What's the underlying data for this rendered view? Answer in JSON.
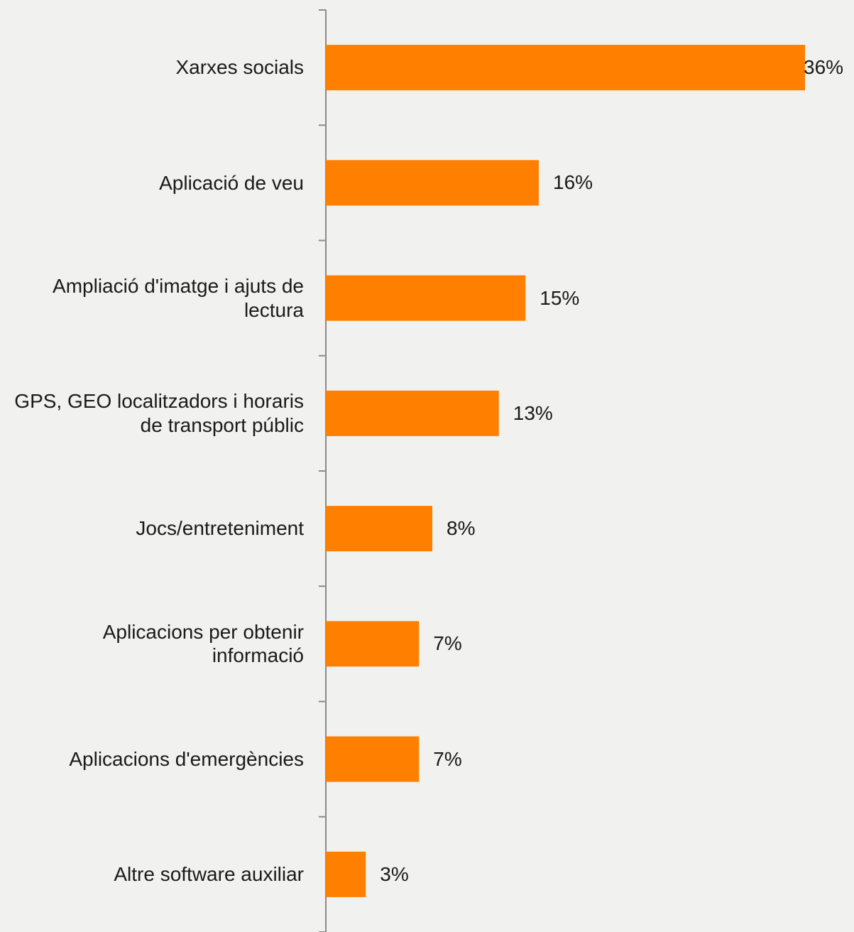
{
  "chart_data": {
    "type": "bar",
    "orientation": "horizontal",
    "categories": [
      "Xarxes socials",
      "Aplicació de veu",
      "Ampliació d'imatge i ajuts de lectura",
      "GPS, GEO localitzadors i horaris de transport públic",
      "Jocs/entreteniment",
      "Aplicacions per obtenir informació",
      "Aplicacions d'emergències",
      "Altre software auxiliar"
    ],
    "values": [
      36,
      16,
      15,
      13,
      8,
      7,
      7,
      3
    ],
    "value_labels": [
      "36%",
      "16%",
      "15%",
      "13%",
      "8%",
      "7%",
      "7%",
      "3%"
    ],
    "color": "#ff7f00"
  }
}
